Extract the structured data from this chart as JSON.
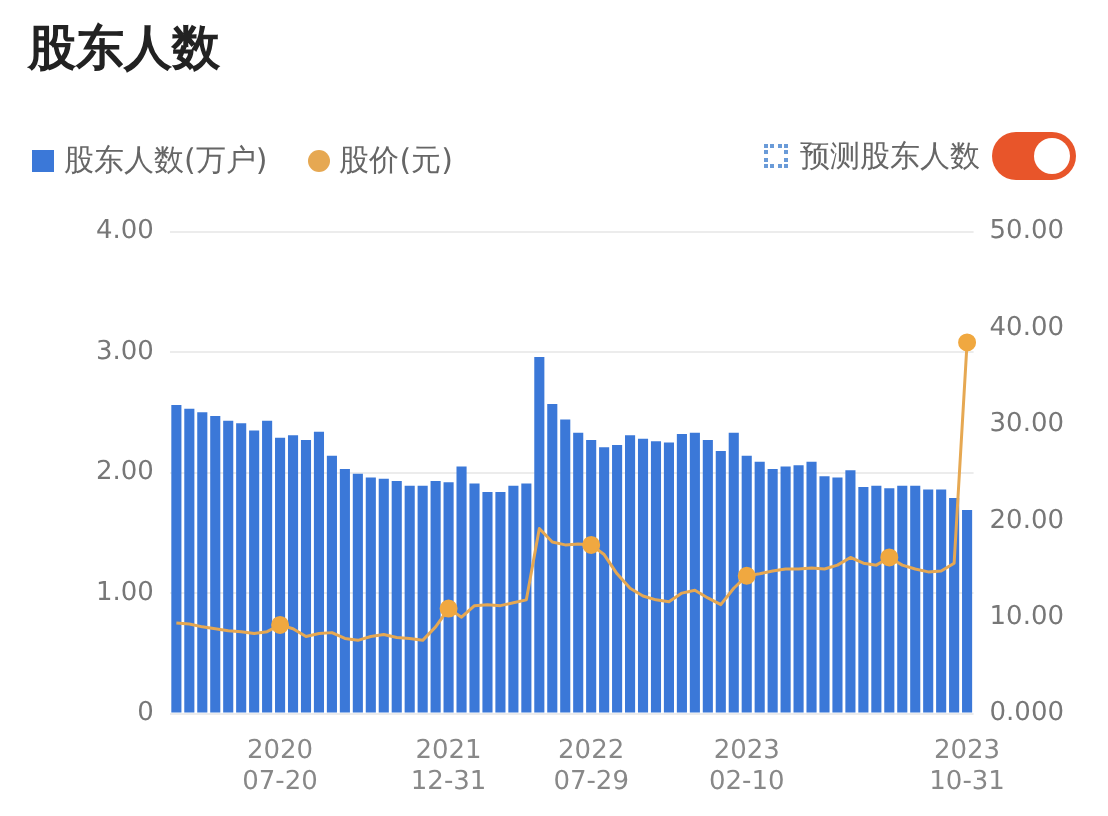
{
  "chart_data": {
    "type": "bar",
    "title": "股东人数",
    "categories": [
      null,
      null,
      null,
      null,
      null,
      null,
      null,
      null,
      "2020 07-20",
      null,
      null,
      null,
      null,
      null,
      null,
      null,
      null,
      null,
      null,
      null,
      null,
      "2021 12-31",
      null,
      null,
      null,
      null,
      null,
      null,
      null,
      null,
      null,
      null,
      "2022 07-29",
      null,
      null,
      null,
      null,
      null,
      null,
      null,
      null,
      null,
      null,
      null,
      "2023 02-10",
      null,
      null,
      null,
      null,
      null,
      null,
      null,
      null,
      null,
      null,
      null,
      null,
      null,
      null,
      null,
      null,
      "2023 10-31"
    ],
    "series": [
      {
        "name": "股东人数(万户)",
        "color": "#3b78d8",
        "values": [
          2.56,
          2.53,
          2.5,
          2.47,
          2.43,
          2.41,
          2.35,
          2.43,
          2.29,
          2.31,
          2.27,
          2.34,
          2.14,
          2.03,
          1.99,
          1.96,
          1.95,
          1.93,
          1.89,
          1.89,
          1.93,
          1.92,
          2.05,
          1.91,
          1.84,
          1.84,
          1.89,
          1.91,
          2.96,
          2.57,
          2.44,
          2.33,
          2.27,
          2.21,
          2.23,
          2.31,
          2.28,
          2.26,
          2.25,
          2.32,
          2.33,
          2.27,
          2.18,
          2.33,
          2.14,
          2.09,
          2.03,
          2.05,
          2.06,
          2.09,
          1.97,
          1.96,
          2.02,
          1.88,
          1.89,
          1.87,
          1.89,
          1.89,
          1.86,
          1.86,
          1.79,
          1.69
        ]
      },
      {
        "name": "股价(元)",
        "type": "line",
        "axis": "y2",
        "marker": "none",
        "color": "#e6a852",
        "values": [
          9.4,
          9.3,
          9.0,
          8.8,
          8.6,
          8.5,
          8.3,
          8.5,
          9.2,
          8.8,
          8.0,
          8.3,
          8.4,
          7.8,
          7.6,
          8.0,
          8.2,
          7.9,
          7.8,
          7.6,
          9.0,
          10.9,
          10.0,
          11.2,
          11.3,
          11.2,
          11.5,
          11.8,
          19.2,
          17.8,
          17.5,
          17.6,
          17.5,
          16.5,
          14.5,
          13.0,
          12.2,
          11.8,
          11.6,
          12.5,
          12.8,
          12.0,
          11.3,
          13.0,
          14.3,
          14.5,
          14.8,
          15.0,
          15.0,
          15.1,
          15.0,
          15.4,
          16.2,
          15.6,
          15.4,
          16.2,
          15.4,
          15.0,
          14.7,
          14.8,
          15.6,
          38.5
        ]
      },
      {
        "type": "scatter",
        "axis": "y2",
        "marker": "circle",
        "color": "#f0a840",
        "values": [
          null,
          null,
          null,
          null,
          null,
          null,
          null,
          null,
          9.2,
          null,
          null,
          null,
          null,
          null,
          null,
          null,
          null,
          null,
          null,
          null,
          null,
          10.9,
          null,
          null,
          null,
          null,
          null,
          null,
          null,
          null,
          null,
          null,
          17.5,
          null,
          null,
          null,
          null,
          null,
          null,
          null,
          null,
          null,
          null,
          null,
          14.3,
          null,
          null,
          null,
          null,
          null,
          null,
          null,
          null,
          null,
          null,
          16.2,
          null,
          null,
          null,
          null,
          null,
          38.5
        ]
      }
    ],
    "ylim": [
      0,
      4
    ],
    "yticks": [
      {
        "value": 0,
        "label": "0"
      },
      {
        "value": 1,
        "label": "1.00"
      },
      {
        "value": 2,
        "label": "2.00"
      },
      {
        "value": 3,
        "label": "3.00"
      },
      {
        "value": 4,
        "label": "4.00"
      }
    ],
    "y2lim": [
      0,
      50
    ],
    "y2ticks": [
      {
        "value": 0,
        "label": "0.000"
      },
      {
        "value": 10,
        "label": "10.00"
      },
      {
        "value": 20,
        "label": "20.00"
      },
      {
        "value": 30,
        "label": "30.00"
      },
      {
        "value": 40,
        "label": "40.00"
      },
      {
        "value": 50,
        "label": "50.00"
      }
    ],
    "grid": "y",
    "legend": "top",
    "annotations": [
      "预测股东人数"
    ]
  }
}
